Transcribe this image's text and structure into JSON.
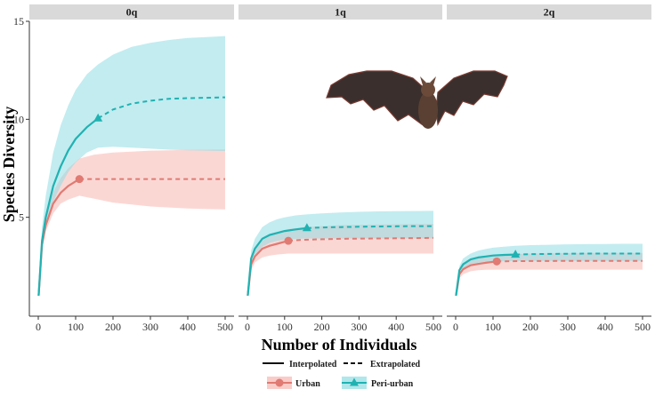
{
  "chart_data": {
    "type": "line",
    "xlabel": "Number of Individuals",
    "ylabel": "Species Diversity",
    "xlim": [
      0,
      500
    ],
    "ylim": [
      0,
      15
    ],
    "x_ticks": [
      0,
      100,
      200,
      300,
      400,
      500
    ],
    "x_tick_labels": [
      "0",
      "100",
      "200",
      "300",
      "400",
      "500"
    ],
    "y_ticks": [
      5,
      10,
      15
    ],
    "y_tick_labels": [
      "5",
      "10",
      "15"
    ],
    "grid": false,
    "colors": {
      "urban": "#e07a72",
      "periurban": "#20b2b2",
      "urban_fill": "#f7b6b1",
      "periurban_fill": "#8fdde3",
      "strip_bg": "#d9d9d9"
    },
    "legend": {
      "method_items": [
        {
          "label": "Interpolated",
          "style": "solid"
        },
        {
          "label": "Extrapolated",
          "style": "dashed"
        }
      ],
      "series_items": [
        {
          "label": "Urban",
          "series": "urban",
          "shape": "circle"
        },
        {
          "label": "Peri-urban",
          "series": "periurban",
          "shape": "triangle"
        }
      ]
    },
    "panels": [
      {
        "label": "0q",
        "series": [
          {
            "name": "Urban",
            "key": "urban",
            "observed_n": 110,
            "observed_value": 6.95,
            "x": [
              1,
              10,
              20,
              40,
              60,
              80,
              110,
              150,
              200,
              250,
              300,
              350,
              400,
              450,
              500
            ],
            "y": [
              1,
              3.6,
              4.6,
              5.7,
              6.25,
              6.6,
              6.95,
              6.95,
              6.95,
              6.95,
              6.95,
              6.95,
              6.95,
              6.95,
              6.95
            ],
            "lower": [
              1,
              3.3,
              4.3,
              5.2,
              5.7,
              5.9,
              6.1,
              5.95,
              5.75,
              5.65,
              5.55,
              5.5,
              5.45,
              5.42,
              5.4
            ],
            "upper": [
              1,
              3.9,
              5.0,
              6.3,
              7.0,
              7.5,
              8.0,
              8.2,
              8.3,
              8.35,
              8.4,
              8.42,
              8.44,
              8.45,
              8.46
            ]
          },
          {
            "name": "Peri-urban",
            "key": "periurban",
            "observed_n": 160,
            "observed_value": 10.05,
            "x": [
              1,
              10,
              20,
              40,
              60,
              80,
              100,
              130,
              160,
              200,
              250,
              300,
              350,
              400,
              450,
              500
            ],
            "y": [
              1,
              3.8,
              5.0,
              6.6,
              7.6,
              8.4,
              9.0,
              9.6,
              10.05,
              10.5,
              10.8,
              10.95,
              11.05,
              11.08,
              11.1,
              11.12
            ],
            "lower": [
              1,
              3.3,
              4.4,
              5.8,
              6.6,
              7.3,
              7.8,
              8.3,
              8.55,
              8.6,
              8.55,
              8.5,
              8.45,
              8.42,
              8.4,
              8.38
            ],
            "upper": [
              1,
              4.5,
              6.1,
              8.3,
              9.7,
              10.7,
              11.5,
              12.3,
              12.8,
              13.3,
              13.7,
              13.9,
              14.05,
              14.15,
              14.2,
              14.25
            ]
          }
        ]
      },
      {
        "label": "1q",
        "series": [
          {
            "name": "Urban",
            "key": "urban",
            "observed_n": 110,
            "observed_value": 3.8,
            "x": [
              1,
              10,
              20,
              40,
              60,
              80,
              110,
              150,
              200,
              250,
              300,
              350,
              400,
              450,
              500
            ],
            "y": [
              1,
              2.6,
              3.0,
              3.4,
              3.55,
              3.65,
              3.8,
              3.85,
              3.88,
              3.9,
              3.91,
              3.92,
              3.93,
              3.94,
              3.95
            ],
            "lower": [
              1,
              2.3,
              2.7,
              2.95,
              3.05,
              3.1,
              3.15,
              3.15,
              3.15,
              3.15,
              3.15,
              3.15,
              3.15,
              3.15,
              3.15
            ],
            "upper": [
              1,
              2.9,
              3.4,
              3.8,
              4.05,
              4.2,
              4.4,
              4.5,
              4.55,
              4.6,
              4.62,
              4.63,
              4.64,
              4.65,
              4.66
            ]
          },
          {
            "name": "Peri-urban",
            "key": "periurban",
            "observed_n": 160,
            "observed_value": 4.45,
            "x": [
              1,
              10,
              20,
              40,
              60,
              80,
              100,
              130,
              160,
              200,
              250,
              300,
              350,
              400,
              450,
              500
            ],
            "y": [
              1,
              2.9,
              3.4,
              3.9,
              4.1,
              4.2,
              4.3,
              4.38,
              4.45,
              4.48,
              4.5,
              4.52,
              4.53,
              4.54,
              4.55,
              4.55
            ],
            "lower": [
              1,
              2.6,
              3.1,
              3.5,
              3.7,
              3.8,
              3.85,
              3.9,
              3.92,
              3.92,
              3.92,
              3.92,
              3.92,
              3.92,
              3.92,
              3.92
            ],
            "upper": [
              1,
              3.3,
              3.9,
              4.5,
              4.75,
              4.9,
              5.0,
              5.1,
              5.15,
              5.2,
              5.25,
              5.28,
              5.3,
              5.31,
              5.32,
              5.33
            ]
          }
        ]
      },
      {
        "label": "2q",
        "series": [
          {
            "name": "Urban",
            "key": "urban",
            "observed_n": 110,
            "observed_value": 2.75,
            "x": [
              1,
              10,
              20,
              40,
              60,
              80,
              110,
              150,
              200,
              250,
              300,
              350,
              400,
              450,
              500
            ],
            "y": [
              1,
              2.1,
              2.35,
              2.55,
              2.62,
              2.68,
              2.75,
              2.76,
              2.77,
              2.77,
              2.78,
              2.78,
              2.78,
              2.78,
              2.78
            ],
            "lower": [
              1,
              1.9,
              2.1,
              2.25,
              2.3,
              2.32,
              2.33,
              2.33,
              2.33,
              2.33,
              2.33,
              2.33,
              2.33,
              2.33,
              2.33
            ],
            "upper": [
              1,
              2.3,
              2.6,
              2.85,
              2.95,
              3.0,
              3.1,
              3.12,
              3.15,
              3.16,
              3.17,
              3.18,
              3.18,
              3.18,
              3.18
            ]
          },
          {
            "name": "Peri-urban",
            "key": "periurban",
            "observed_n": 160,
            "observed_value": 3.1,
            "x": [
              1,
              10,
              20,
              40,
              60,
              80,
              100,
              130,
              160,
              200,
              250,
              300,
              350,
              400,
              450,
              500
            ],
            "y": [
              1,
              2.3,
              2.6,
              2.85,
              2.95,
              3.0,
              3.05,
              3.08,
              3.1,
              3.12,
              3.13,
              3.14,
              3.15,
              3.15,
              3.15,
              3.15
            ],
            "lower": [
              1,
              2.1,
              2.35,
              2.6,
              2.68,
              2.72,
              2.74,
              2.76,
              2.77,
              2.78,
              2.78,
              2.78,
              2.78,
              2.78,
              2.78,
              2.78
            ],
            "upper": [
              1,
              2.5,
              2.9,
              3.15,
              3.3,
              3.38,
              3.45,
              3.5,
              3.55,
              3.58,
              3.6,
              3.62,
              3.63,
              3.64,
              3.65,
              3.65
            ]
          }
        ]
      }
    ]
  }
}
